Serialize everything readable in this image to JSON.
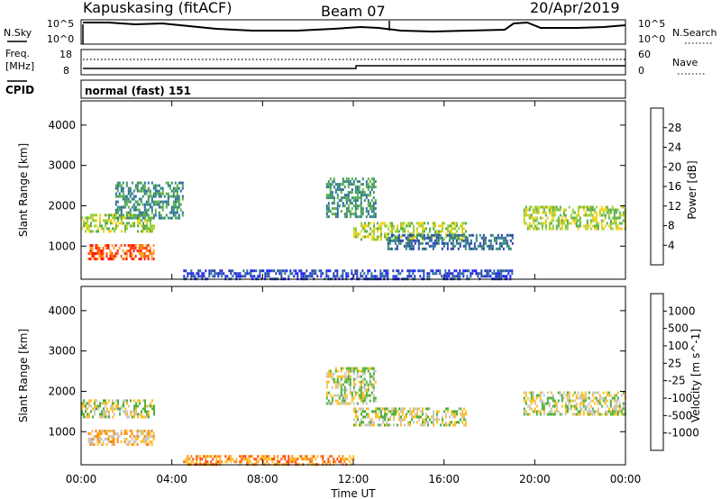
{
  "header": {
    "station": "Kapuskasing (fitACF)",
    "beam": "Beam 07",
    "date": "20/Apr/2019"
  },
  "panels": {
    "nsky": {
      "left_label": "N.Sky",
      "right_label": "N.Search",
      "left_ticks": [
        "10^5",
        "10^0"
      ],
      "right_ticks": [
        "10^5",
        "10^0"
      ]
    },
    "freq": {
      "left_label_1": "Freq.",
      "left_label_2": "[MHz]",
      "right_label": "Nave",
      "left_ticks": [
        "18",
        "8"
      ],
      "right_ticks": [
        "60",
        "0"
      ]
    },
    "cpid": {
      "left_label": "CPID",
      "value": "normal (fast) 151"
    }
  },
  "chart_data": [
    {
      "type": "heatmap",
      "title": "",
      "xlabel": "Time UT",
      "ylabel": "Slant Range [km]",
      "x_ticks": [
        "00:00",
        "04:00",
        "08:00",
        "12:00",
        "16:00",
        "20:00",
        "00:00"
      ],
      "x_range_hours": [
        0,
        24
      ],
      "y_ticks": [
        1000,
        2000,
        3000,
        4000
      ],
      "y_range_km": [
        180,
        4600
      ],
      "colorbar": {
        "label": "Power [dB]",
        "ticks": [
          4,
          8,
          12,
          16,
          20,
          24,
          28
        ],
        "range": [
          0,
          32
        ],
        "colors": [
          "#1d1dff",
          "#2a3fb0",
          "#2c6fa0",
          "#3a8f6a",
          "#5ab04a",
          "#9ccf3a",
          "#f2d21a",
          "#ff9d1a",
          "#ff5a10",
          "#ff1a0a"
        ]
      },
      "echo_regions": [
        {
          "t0": 0.0,
          "t1": 3.2,
          "r0": 1350,
          "r1": 1800,
          "value": 18
        },
        {
          "t0": 0.3,
          "t1": 3.2,
          "r0": 700,
          "r1": 1050,
          "value": 26
        },
        {
          "t0": 1.5,
          "t1": 4.5,
          "r0": 1700,
          "r1": 2600,
          "value": 10
        },
        {
          "t0": 10.8,
          "t1": 13.0,
          "r0": 1700,
          "r1": 2700,
          "value": 11
        },
        {
          "t0": 12.0,
          "t1": 17.0,
          "r0": 1150,
          "r1": 1600,
          "value": 16
        },
        {
          "t0": 13.5,
          "t1": 19.0,
          "r0": 950,
          "r1": 1300,
          "value": 9
        },
        {
          "t0": 19.5,
          "t1": 24.0,
          "r0": 1400,
          "r1": 2000,
          "value": 17
        },
        {
          "t0": 4.5,
          "t1": 19.0,
          "r0": 200,
          "r1": 420,
          "value": 6
        }
      ]
    },
    {
      "type": "heatmap",
      "title": "",
      "xlabel": "Time UT",
      "ylabel": "Slant Range [km]",
      "x_ticks": [
        "00:00",
        "04:00",
        "08:00",
        "12:00",
        "16:00",
        "20:00",
        "00:00"
      ],
      "x_range_hours": [
        0,
        24
      ],
      "y_ticks": [
        1000,
        2000,
        3000,
        4000
      ],
      "y_range_km": [
        180,
        4600
      ],
      "colorbar": {
        "label": "Velocity [m s^-1]",
        "ticks": [
          "1000",
          "500",
          "100",
          "25",
          "-25",
          "-100",
          "-500",
          "-1000"
        ],
        "colors": [
          "#1d2bb5",
          "#2e5fa0",
          "#2f8a76",
          "#4fb03a",
          "#c8c8c0",
          "#ffbf20",
          "#ff8a10",
          "#ff4a0a",
          "#ff0a0a"
        ]
      },
      "echo_regions": [
        {
          "t0": 0.0,
          "t1": 3.2,
          "r0": 1350,
          "r1": 1800,
          "value": "25"
        },
        {
          "t0": 0.3,
          "t1": 3.2,
          "r0": 700,
          "r1": 1050,
          "value": "-25"
        },
        {
          "t0": 10.8,
          "t1": 13.0,
          "r0": 1700,
          "r1": 2600,
          "value": "25"
        },
        {
          "t0": 12.0,
          "t1": 17.0,
          "r0": 1150,
          "r1": 1600,
          "value": "25"
        },
        {
          "t0": 19.5,
          "t1": 24.0,
          "r0": 1400,
          "r1": 2000,
          "value": "25"
        },
        {
          "t0": 4.5,
          "t1": 12.0,
          "r0": 200,
          "r1": 420,
          "value": "-100"
        }
      ]
    }
  ]
}
